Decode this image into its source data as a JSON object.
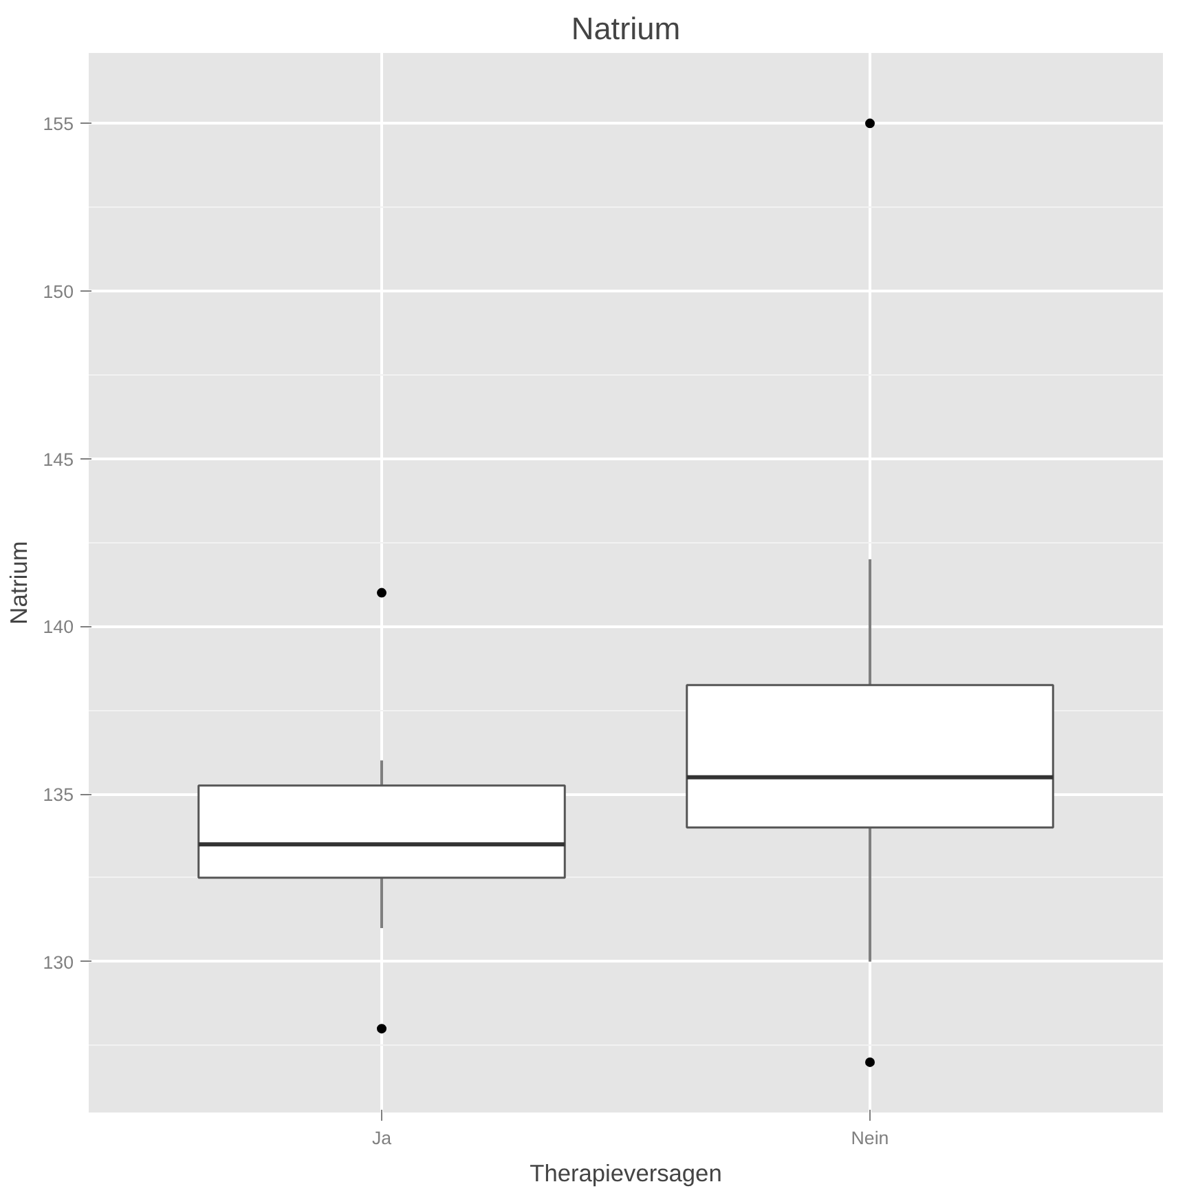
{
  "chart_data": {
    "type": "box",
    "title": "Natrium",
    "xlabel": "Therapieversagen",
    "ylabel": "Natrium",
    "categories": [
      "Ja",
      "Nein"
    ],
    "boxes": [
      {
        "low": 131,
        "q1": 132.5,
        "median": 133.5,
        "q3": 135.25,
        "high": 136,
        "outliers": [
          141,
          128
        ]
      },
      {
        "low": 130,
        "q1": 134,
        "median": 135.5,
        "q3": 138.25,
        "high": 142,
        "outliers": [
          155,
          127
        ]
      }
    ],
    "ylim": [
      125.5,
      157.1
    ],
    "yticks": [
      130,
      135,
      140,
      145,
      150,
      155
    ],
    "grid": true
  }
}
